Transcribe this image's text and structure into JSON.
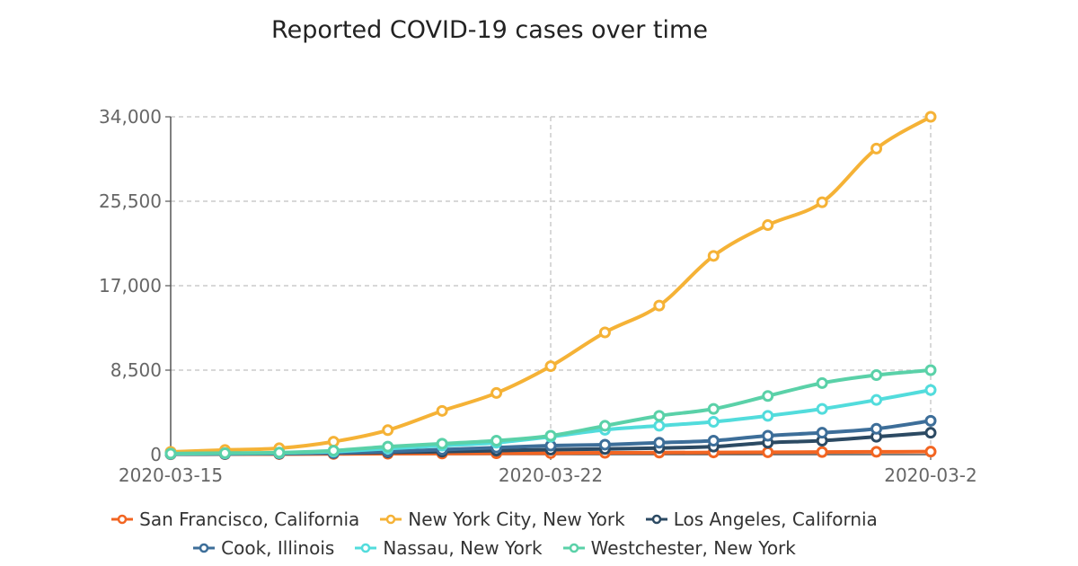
{
  "chart_data": {
    "type": "line",
    "title": "Reported COVID-19 cases over time",
    "xlabel": "",
    "ylabel": "",
    "x": [
      "2020-03-15",
      "2020-03-16",
      "2020-03-17",
      "2020-03-18",
      "2020-03-19",
      "2020-03-20",
      "2020-03-21",
      "2020-03-22",
      "2020-03-23",
      "2020-03-24",
      "2020-03-25",
      "2020-03-26",
      "2020-03-27",
      "2020-03-28",
      "2020-03-29"
    ],
    "x_tick_labels": [
      "2020-03-15",
      "2020-03-22",
      "2020-03-2"
    ],
    "y_ticks": [
      0,
      8500,
      17000,
      25500,
      34000
    ],
    "y_tick_labels": [
      "0",
      "8,500",
      "17,000",
      "25,500",
      "34,000"
    ],
    "ylim": [
      0,
      34000
    ],
    "grid": true,
    "legend_position": "bottom",
    "series": [
      {
        "name": "San Francisco, California",
        "color": "#f26522",
        "values": [
          30,
          40,
          50,
          70,
          90,
          110,
          130,
          150,
          180,
          200,
          220,
          240,
          260,
          280,
          300
        ]
      },
      {
        "name": "New York City, New York",
        "color": "#f5b236",
        "values": [
          270,
          460,
          640,
          1300,
          2460,
          4400,
          6200,
          8900,
          12300,
          15000,
          20000,
          23100,
          25400,
          30800,
          34000
        ]
      },
      {
        "name": "Los Angeles, California",
        "color": "#2c4a63",
        "values": [
          50,
          70,
          100,
          150,
          230,
          300,
          400,
          500,
          560,
          660,
          800,
          1200,
          1400,
          1800,
          2200
        ]
      },
      {
        "name": "Cook, Illinois",
        "color": "#3d6e99",
        "values": [
          60,
          80,
          110,
          160,
          300,
          500,
          700,
          900,
          1000,
          1200,
          1400,
          1900,
          2200,
          2600,
          3400
        ]
      },
      {
        "name": "Nassau, New York",
        "color": "#52dcdc",
        "values": [
          80,
          120,
          160,
          300,
          600,
          900,
          1200,
          1800,
          2500,
          2900,
          3300,
          3900,
          4600,
          5500,
          6500
        ]
      },
      {
        "name": "Westchester, New York",
        "color": "#5ad1a8",
        "values": [
          100,
          150,
          200,
          400,
          800,
          1100,
          1400,
          1900,
          2900,
          3900,
          4600,
          5900,
          7200,
          8000,
          8500
        ]
      }
    ]
  }
}
